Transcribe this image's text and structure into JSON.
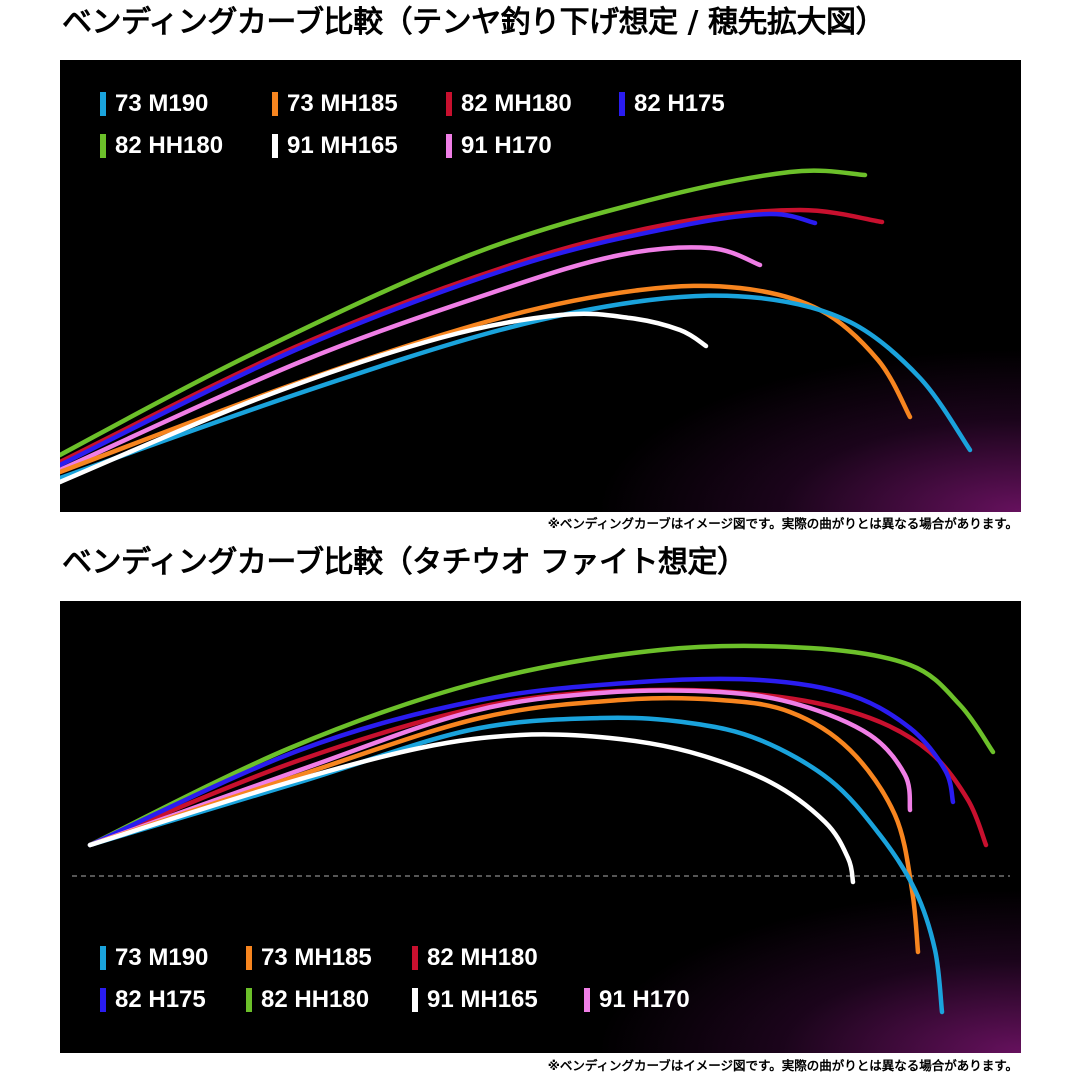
{
  "titles": {
    "top": "ベンディングカーブ比較（テンヤ釣り下げ想定 / 穂先拡大図）",
    "bottom": "ベンディングカーブ比較（タチウオ ファイト想定）"
  },
  "note": "※ベンディングカーブはイメージ図です。実際の曲がりとは異なる場合があります。",
  "colors": {
    "73 M190": "#1aa3dc",
    "73 MH185": "#f7851f",
    "82 MH180": "#c8102e",
    "82 H175": "#2a1cf0",
    "82 HH180": "#6cc02a",
    "91 MH165": "#ffffff",
    "91 H170": "#f07ee6"
  },
  "chart_data": [
    {
      "type": "line",
      "title": "ベンディングカーブ比較（テンヤ釣り下げ想定 / 穂先拡大図）",
      "xlabel": "",
      "ylabel": "",
      "grid": false,
      "legend_position": "top-left",
      "legend": [
        "73 M190",
        "73 MH185",
        "82 MH180",
        "82 H175",
        "82 HH180",
        "91 MH165",
        "91 H170"
      ],
      "series": [
        {
          "name": "82 HH180",
          "points": [
            [
              60,
              455
            ],
            [
              250,
              355
            ],
            [
              470,
              255
            ],
            [
              650,
              200
            ],
            [
              790,
              172
            ],
            [
              865,
              175
            ]
          ]
        },
        {
          "name": "82 MH180",
          "points": [
            [
              60,
              462
            ],
            [
              300,
              345
            ],
            [
              520,
              262
            ],
            [
              680,
              222
            ],
            [
              800,
              210
            ],
            [
              882,
              222
            ]
          ]
        },
        {
          "name": "82 H175",
          "points": [
            [
              60,
              465
            ],
            [
              300,
              348
            ],
            [
              520,
              265
            ],
            [
              680,
              226
            ],
            [
              770,
              214
            ],
            [
              815,
              223
            ]
          ]
        },
        {
          "name": "91 H170",
          "points": [
            [
              60,
              470
            ],
            [
              300,
              362
            ],
            [
              500,
              290
            ],
            [
              620,
              255
            ],
            [
              710,
              248
            ],
            [
              760,
              265
            ]
          ]
        },
        {
          "name": "73 MH185",
          "points": [
            [
              60,
              472
            ],
            [
              300,
              382
            ],
            [
              500,
              318
            ],
            [
              640,
              290
            ],
            [
              740,
              288
            ],
            [
              820,
              310
            ],
            [
              878,
              360
            ],
            [
              910,
              417
            ]
          ]
        },
        {
          "name": "73 M190",
          "points": [
            [
              60,
              478
            ],
            [
              300,
              393
            ],
            [
              500,
              330
            ],
            [
              650,
              300
            ],
            [
              760,
              298
            ],
            [
              850,
              322
            ],
            [
              920,
              378
            ],
            [
              970,
              450
            ]
          ]
        },
        {
          "name": "91 MH165",
          "points": [
            [
              60,
              482
            ],
            [
              260,
              398
            ],
            [
              440,
              338
            ],
            [
              560,
              315
            ],
            [
              630,
              318
            ],
            [
              680,
              330
            ],
            [
              706,
              346
            ]
          ]
        }
      ]
    },
    {
      "type": "line",
      "title": "ベンディングカーブ比較（タチウオ ファイト想定）",
      "xlabel": "",
      "ylabel": "",
      "grid": false,
      "reference_line": "dashed horizontal",
      "legend_position": "bottom-left",
      "legend": [
        "73 M190",
        "73 MH185",
        "82 MH180",
        "82 H175",
        "82 HH180",
        "91 MH165",
        "91 H170"
      ],
      "series": [
        {
          "name": "82 HH180",
          "points": [
            [
              90,
              845
            ],
            [
              290,
              748
            ],
            [
              480,
              682
            ],
            [
              660,
              650
            ],
            [
              810,
              648
            ],
            [
              910,
              665
            ],
            [
              960,
              705
            ],
            [
              993,
              752
            ]
          ]
        },
        {
          "name": "82 MH180",
          "points": [
            [
              90,
              845
            ],
            [
              300,
              760
            ],
            [
              490,
              705
            ],
            [
              650,
              690
            ],
            [
              780,
              697
            ],
            [
              870,
              718
            ],
            [
              930,
              752
            ],
            [
              968,
              800
            ],
            [
              986,
              845
            ]
          ]
        },
        {
          "name": "82 H175",
          "points": [
            [
              90,
              845
            ],
            [
              300,
              750
            ],
            [
              480,
              700
            ],
            [
              640,
              682
            ],
            [
              760,
              680
            ],
            [
              850,
              695
            ],
            [
              910,
              728
            ],
            [
              945,
              770
            ],
            [
              953,
              802
            ]
          ]
        },
        {
          "name": "91 H170",
          "points": [
            [
              90,
              845
            ],
            [
              300,
              770
            ],
            [
              470,
              712
            ],
            [
              600,
              693
            ],
            [
              720,
              692
            ],
            [
              800,
              705
            ],
            [
              870,
              735
            ],
            [
              905,
              775
            ],
            [
              910,
              810
            ]
          ]
        },
        {
          "name": "73 MH185",
          "points": [
            [
              90,
              845
            ],
            [
              300,
              775
            ],
            [
              480,
              718
            ],
            [
              620,
              700
            ],
            [
              720,
              700
            ],
            [
              790,
              712
            ],
            [
              850,
              750
            ],
            [
              895,
              815
            ],
            [
              912,
              890
            ],
            [
              918,
              952
            ]
          ]
        },
        {
          "name": "73 M190",
          "points": [
            [
              90,
              845
            ],
            [
              300,
              782
            ],
            [
              470,
              730
            ],
            [
              600,
              718
            ],
            [
              690,
              723
            ],
            [
              760,
              740
            ],
            [
              830,
              780
            ],
            [
              880,
              835
            ],
            [
              915,
              890
            ],
            [
              935,
              950
            ],
            [
              942,
              1012
            ]
          ]
        },
        {
          "name": "91 MH165",
          "points": [
            [
              90,
              845
            ],
            [
              280,
              785
            ],
            [
              420,
              748
            ],
            [
              520,
              735
            ],
            [
              610,
              738
            ],
            [
              690,
              752
            ],
            [
              770,
              782
            ],
            [
              825,
              822
            ],
            [
              848,
              858
            ],
            [
              853,
              882
            ]
          ]
        }
      ]
    }
  ]
}
